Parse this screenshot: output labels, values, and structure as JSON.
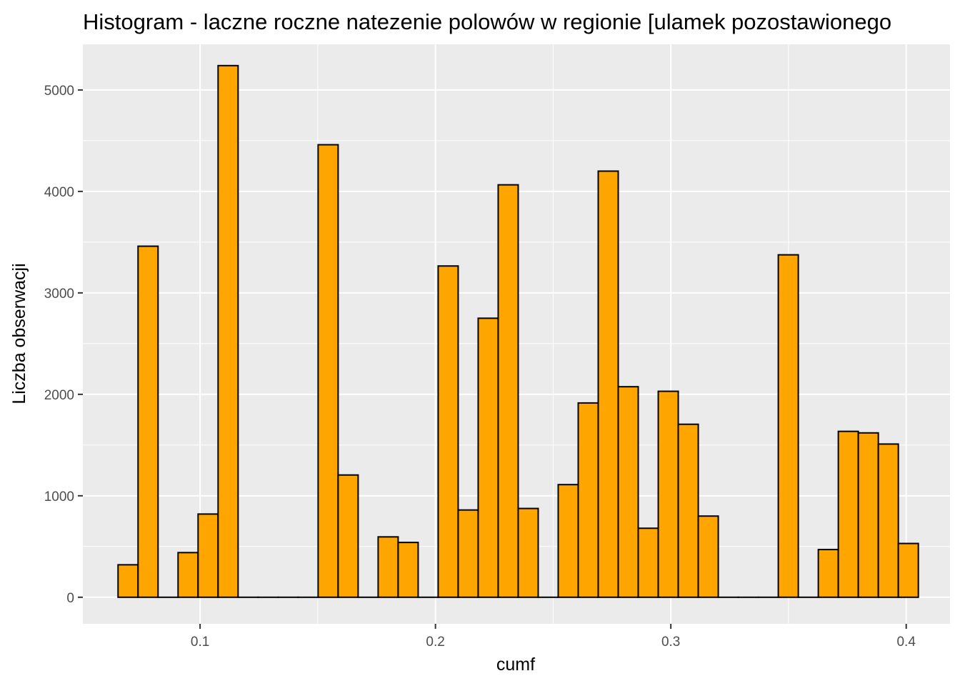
{
  "chart_data": {
    "type": "bar",
    "title": "Histogram - laczne roczne natezenie polowów w regionie [ulamek pozostawionego",
    "xlabel": "cumf",
    "ylabel": "Liczba obserwacji",
    "xlim": [
      0.0502,
      0.4186
    ],
    "ylim": [
      -262,
      5450
    ],
    "x_ticks": [
      0.1,
      0.2,
      0.3,
      0.4
    ],
    "x_tick_labels": [
      "0.1",
      "0.2",
      "0.3",
      "0.4"
    ],
    "y_ticks": [
      0,
      1000,
      2000,
      3000,
      4000,
      5000
    ],
    "y_tick_labels": [
      "0",
      "1000",
      "2000",
      "3000",
      "4000",
      "5000"
    ],
    "grid": true,
    "bin_width": 0.0085,
    "bar_fill": "#FFA500",
    "bar_stroke": "#000000",
    "panel_background": "#EBEBEB",
    "grid_color": "#FFFFFF",
    "bins": [
      {
        "x": 0.0694,
        "count": 320
      },
      {
        "x": 0.0779,
        "count": 3460
      },
      {
        "x": 0.0864,
        "count": 0
      },
      {
        "x": 0.0949,
        "count": 440
      },
      {
        "x": 0.1034,
        "count": 820
      },
      {
        "x": 0.1119,
        "count": 5240
      },
      {
        "x": 0.1204,
        "count": 0
      },
      {
        "x": 0.1289,
        "count": 0
      },
      {
        "x": 0.1374,
        "count": 0
      },
      {
        "x": 0.1459,
        "count": 0
      },
      {
        "x": 0.1544,
        "count": 4460
      },
      {
        "x": 0.1629,
        "count": 1205
      },
      {
        "x": 0.1714,
        "count": 0
      },
      {
        "x": 0.1799,
        "count": 595
      },
      {
        "x": 0.1884,
        "count": 540
      },
      {
        "x": 0.1969,
        "count": 0
      },
      {
        "x": 0.2054,
        "count": 3265
      },
      {
        "x": 0.2139,
        "count": 860
      },
      {
        "x": 0.2224,
        "count": 2750
      },
      {
        "x": 0.2309,
        "count": 4065
      },
      {
        "x": 0.2394,
        "count": 875
      },
      {
        "x": 0.2479,
        "count": 0
      },
      {
        "x": 0.2564,
        "count": 1110
      },
      {
        "x": 0.2649,
        "count": 1915
      },
      {
        "x": 0.2734,
        "count": 4200
      },
      {
        "x": 0.2819,
        "count": 2075
      },
      {
        "x": 0.2904,
        "count": 680
      },
      {
        "x": 0.2989,
        "count": 2030
      },
      {
        "x": 0.3074,
        "count": 1705
      },
      {
        "x": 0.3159,
        "count": 800
      },
      {
        "x": 0.3244,
        "count": 0
      },
      {
        "x": 0.3329,
        "count": 0
      },
      {
        "x": 0.3414,
        "count": 0
      },
      {
        "x": 0.3499,
        "count": 3375
      },
      {
        "x": 0.3584,
        "count": 0
      },
      {
        "x": 0.3669,
        "count": 470
      },
      {
        "x": 0.3754,
        "count": 1635
      },
      {
        "x": 0.3839,
        "count": 1620
      },
      {
        "x": 0.3924,
        "count": 1510
      },
      {
        "x": 0.4009,
        "count": 530
      }
    ]
  }
}
